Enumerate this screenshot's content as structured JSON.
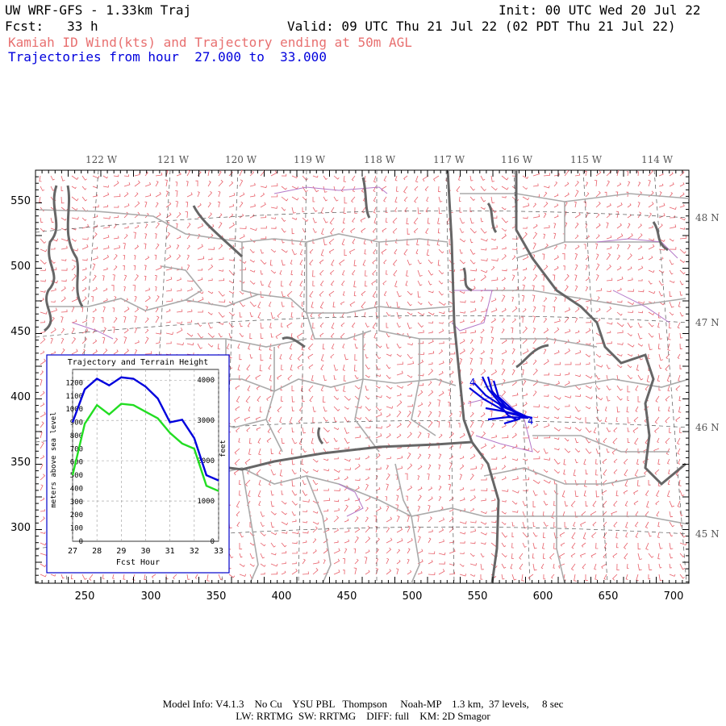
{
  "header": {
    "title": "UW WRF-GFS - 1.33km Traj",
    "init": "Init: 00 UTC Wed 20 Jul 22",
    "fcst": "Fcst:   33 h",
    "valid": "Valid: 09 UTC Thu 21 Jul 22 (02 PDT Thu 21 Jul 22)",
    "subtitle_red": "Kamiah ID Wind(kts) and Trajectory ending at 50m AGL",
    "subtitle_blue": "Trajectories from hour  27.000 to  33.000"
  },
  "colors": {
    "wind_barbs": "#e8606a",
    "trajectory": "#0000dd",
    "terrain_line": "#22dd22",
    "state_borders": "#666666",
    "county_lines": "#aaaaaa",
    "subtitle_red": "#e87070",
    "subtitle_blue": "#0000dd"
  },
  "map": {
    "top_lon_labels": [
      "122 W",
      "121 W",
      "120 W",
      "119 W",
      "118 W",
      "117 W",
      "116 W",
      "115 W",
      "114 W"
    ],
    "right_lat_labels": [
      "48 N",
      "47 N",
      "46 N",
      "45 N"
    ],
    "left_grid_labels": [
      "550",
      "500",
      "450",
      "400",
      "350",
      "300"
    ],
    "bottom_grid_labels": [
      "250",
      "300",
      "350",
      "400",
      "450",
      "500",
      "550",
      "600",
      "650",
      "700"
    ],
    "trajectory_end_labels": [
      "4",
      "4"
    ]
  },
  "inset": {
    "title": "Trajectory and Terrain Height",
    "left_axis_label": "meters above sea level",
    "right_axis_label": "feet",
    "x_axis_label": "Fcst Hour",
    "chart_data": {
      "type": "line",
      "x": [
        27,
        27.5,
        28,
        28.5,
        29,
        29.5,
        30,
        30.5,
        31,
        31.5,
        32,
        32.5,
        33
      ],
      "xlim": [
        27,
        33
      ],
      "ylim_m": [
        0,
        1300
      ],
      "ylim_ft": [
        0,
        4300
      ],
      "x_ticks": [
        "27",
        "28",
        "29",
        "30",
        "31",
        "32",
        "33"
      ],
      "y_ticks_m": [
        "1200",
        "1100",
        "1000",
        "900",
        "800",
        "700",
        "600",
        "500",
        "400",
        "300",
        "200",
        "100",
        "0"
      ],
      "y_ticks_ft": [
        "4000",
        "3000",
        "2000",
        "1000",
        "0"
      ],
      "series": [
        {
          "values": [
            900,
            1150,
            1230,
            1180,
            1240,
            1230,
            1170,
            1080,
            900,
            920,
            780,
            500,
            460
          ]
        },
        {
          "values": [
            500,
            890,
            1030,
            960,
            1040,
            1030,
            980,
            930,
            820,
            740,
            700,
            420,
            380
          ]
        }
      ]
    }
  },
  "footer": {
    "line1": "Model Info: V4.1.3    No Cu    YSU PBL   Thompson     Noah-MP    1.3 km,  37 levels,     8 sec",
    "line2": "LW: RRTMG  SW: RRTMG    DIFF: full    KM: 2D Smagor"
  }
}
